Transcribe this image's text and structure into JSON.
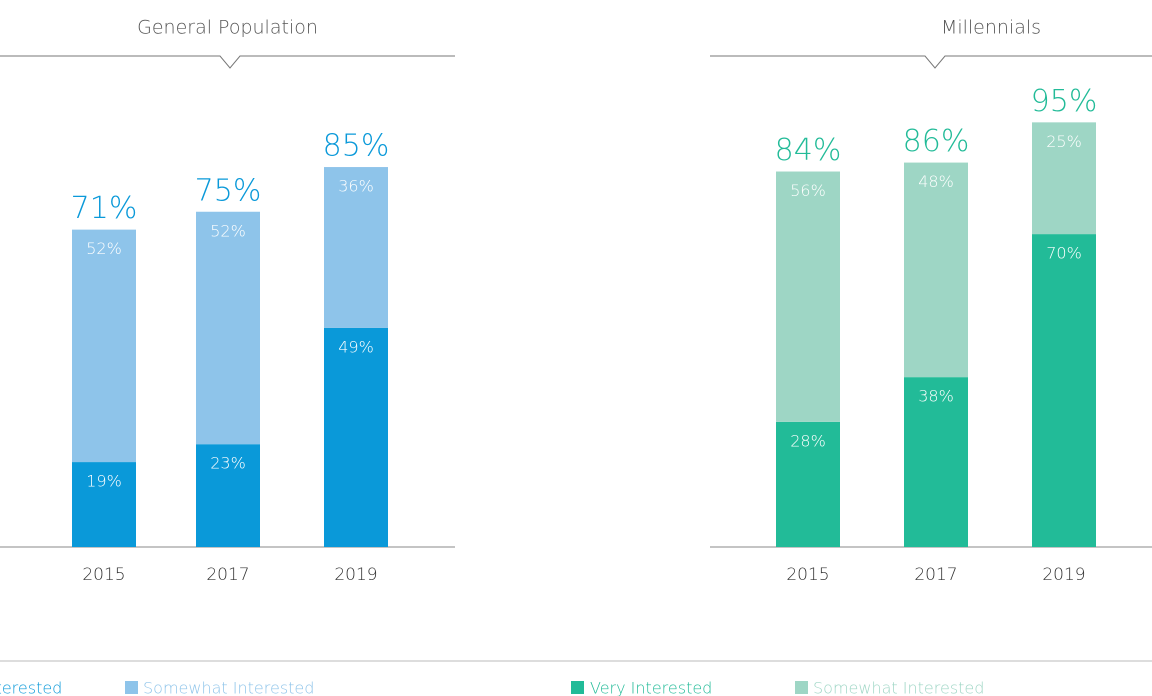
{
  "chart_data": [
    {
      "type": "bar",
      "stacked": true,
      "title": "General Population",
      "categories": [
        "2015",
        "2017",
        "2019"
      ],
      "series": [
        {
          "name": "Very Interested",
          "color": "#0a99d9",
          "values": [
            19,
            23,
            49
          ],
          "value_labels": [
            "19%",
            "23%",
            "49%"
          ]
        },
        {
          "name": "Somewhat Interested",
          "color": "#8ec4ea",
          "values": [
            52,
            52,
            36
          ],
          "value_labels": [
            "52%",
            "52%",
            "36%"
          ]
        }
      ],
      "total_labels": [
        "71%",
        "75%",
        "85%"
      ],
      "ylim": [
        0,
        100
      ]
    },
    {
      "type": "bar",
      "stacked": true,
      "title": "Millennials",
      "categories": [
        "2015",
        "2017",
        "2019"
      ],
      "series": [
        {
          "name": "Very Interested",
          "color": "#22bb98",
          "values": [
            28,
            38,
            70
          ],
          "value_labels": [
            "28%",
            "38%",
            "70%"
          ]
        },
        {
          "name": "Somewhat Interested",
          "color": "#9ed6c5",
          "values": [
            56,
            48,
            25
          ],
          "value_labels": [
            "56%",
            "48%",
            "25%"
          ]
        }
      ],
      "total_labels": [
        "84%",
        "86%",
        "95%"
      ],
      "ylim": [
        0,
        100
      ]
    }
  ]
}
